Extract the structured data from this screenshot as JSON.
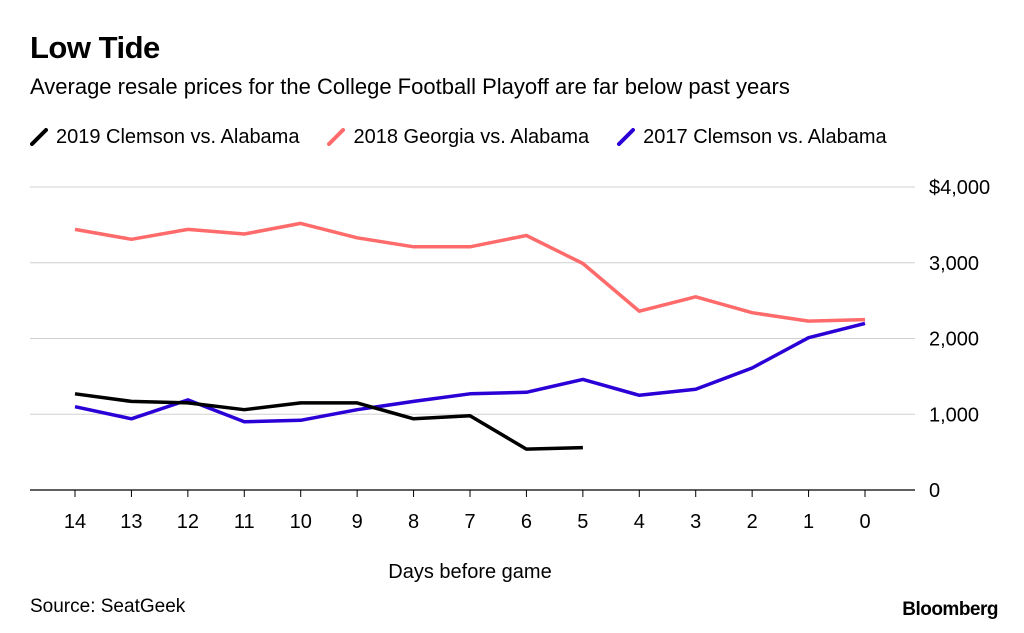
{
  "title": "Low Tide",
  "subtitle": "Average resale prices for the College Football Playoff are far below past years",
  "source": "Source: SeatGeek",
  "brand": "Bloomberg",
  "colors": {
    "clemson2019": "#000000",
    "georgia2018": "#ff6b6b",
    "clemson2017": "#2a00d6",
    "grid": "#d0d0d0",
    "axis": "#000000"
  },
  "legend": [
    {
      "label": "2019 Clemson vs. Alabama",
      "color": "#000000"
    },
    {
      "label": "2018 Georgia vs. Alabama",
      "color": "#ff6b6b"
    },
    {
      "label": "2017 Clemson vs. Alabama",
      "color": "#2a00d6"
    }
  ],
  "chart_data": {
    "type": "line",
    "title": "Low Tide",
    "subtitle": "Average resale prices for the College Football Playoff are far below past years",
    "xlabel": "Days before game",
    "ylabel": "",
    "x": [
      14,
      13,
      12,
      11,
      10,
      9,
      8,
      7,
      6,
      5,
      4,
      3,
      2,
      1,
      0
    ],
    "x_tick_labels": [
      "14",
      "13",
      "12",
      "11",
      "10",
      "9",
      "8",
      "7",
      "6",
      "5",
      "4",
      "3",
      "2",
      "1",
      "0"
    ],
    "ylim": [
      0,
      4000
    ],
    "y_ticks": [
      0,
      1000,
      2000,
      3000,
      4000
    ],
    "y_tick_labels": [
      "0",
      "1,000",
      "2,000",
      "3,000",
      "$4,000"
    ],
    "y_axis_side": "right",
    "grid": true,
    "legend_position": "top",
    "series": [
      {
        "name": "2019 Clemson vs. Alabama",
        "color": "#000000",
        "values": [
          1270,
          1170,
          1150,
          1060,
          1150,
          1150,
          940,
          980,
          540,
          560,
          null,
          null,
          null,
          null,
          null
        ]
      },
      {
        "name": "2018 Georgia vs. Alabama",
        "color": "#ff6b6b",
        "values": [
          3440,
          3310,
          3440,
          3380,
          3520,
          3330,
          3210,
          3210,
          3360,
          2990,
          2360,
          2550,
          2340,
          2230,
          2250
        ]
      },
      {
        "name": "2017 Clemson vs. Alabama",
        "color": "#2a00d6",
        "values": [
          1100,
          940,
          1190,
          900,
          920,
          1060,
          1170,
          1270,
          1290,
          1460,
          1250,
          1330,
          1610,
          2010,
          2200
        ]
      }
    ]
  }
}
